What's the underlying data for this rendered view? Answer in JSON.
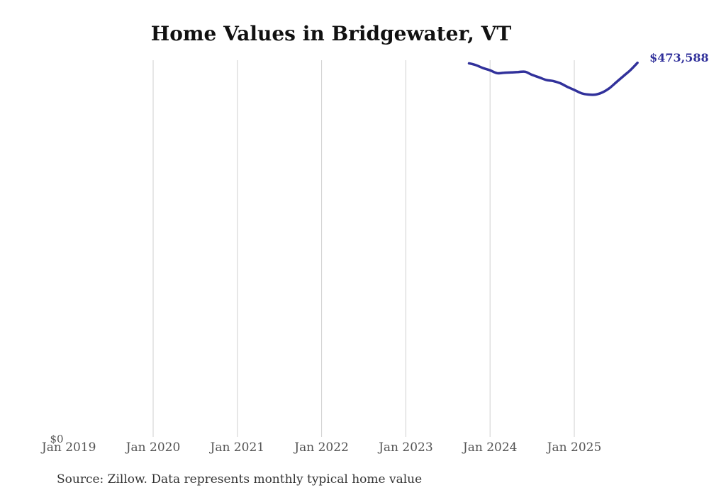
{
  "chart_data": {
    "type": "line",
    "title": "Home Values in Bridgewater, VT",
    "source_note": "Source: Zillow. Data represents monthly typical home value",
    "y_zero_label": "$0",
    "end_label": "$473,588",
    "x_tick_labels": [
      "Jan 2019",
      "Jan 2020",
      "Jan 2021",
      "Jan 2022",
      "Jan 2023",
      "Jan 2024",
      "Jan 2025"
    ],
    "x_gridline_years": [
      2020,
      2021,
      2022,
      2023,
      2024,
      2025
    ],
    "grid_color": "#cfcfcf",
    "axis_label_color": "#545454",
    "ylim": [
      0,
      500000
    ],
    "legend": "none",
    "series": [
      {
        "name": "Monthly typical home value",
        "color": "#31319b",
        "x": [
          "Oct 2023",
          "Nov 2023",
          "Dec 2023",
          "Jan 2024",
          "Feb 2024",
          "Mar 2024",
          "Apr 2024",
          "May 2024",
          "Jun 2024",
          "Jul 2024",
          "Aug 2024",
          "Sep 2024",
          "Oct 2024",
          "Nov 2024",
          "Dec 2024",
          "Jan 2025",
          "Feb 2025",
          "Mar 2025",
          "Apr 2025",
          "May 2025",
          "Jun 2025",
          "Jul 2025",
          "Aug 2025",
          "Sep 2025",
          "Oct 2025"
        ],
        "values": [
          473000,
          470600,
          467000,
          464100,
          460500,
          461000,
          461400,
          462000,
          462300,
          458300,
          455200,
          451900,
          450600,
          447800,
          443300,
          439300,
          435200,
          433500,
          433400,
          436200,
          441500,
          449200,
          456800,
          464400,
          473588
        ]
      }
    ]
  }
}
